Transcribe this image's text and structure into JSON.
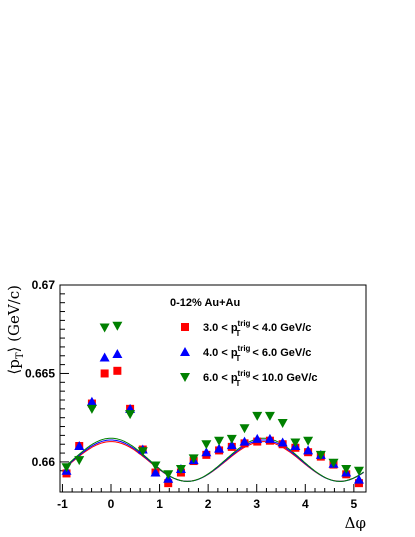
{
  "chart_data": {
    "type": "scatter",
    "title": "0-12% Au+Au",
    "xlabel": "Δφ",
    "ylabel": "⟨p_T⟩ (GeV/c)",
    "xlim": [
      -1.05,
      5.25
    ],
    "ylim": [
      0.6583,
      0.67
    ],
    "x_ticks": [
      -1,
      0,
      1,
      2,
      3,
      4,
      5
    ],
    "y_ticks": [
      0.66,
      0.665,
      0.67
    ],
    "y_tick_labels": [
      "0.66",
      "0.665",
      "0.67"
    ],
    "legend_position": "top-right",
    "series": [
      {
        "name": "3.0 < p_T^trig < 4.0 GeV/c",
        "marker": "square",
        "color": "#ff0000",
        "x": [
          -0.916,
          -0.654,
          -0.393,
          -0.131,
          0.131,
          0.393,
          0.654,
          0.916,
          1.178,
          1.44,
          1.702,
          1.963,
          2.225,
          2.487,
          2.749,
          3.011,
          3.272,
          3.534,
          3.796,
          4.058,
          4.32,
          4.581,
          4.843,
          5.105
        ],
        "y": [
          0.65935,
          0.6609,
          0.6633,
          0.665,
          0.66515,
          0.663,
          0.6607,
          0.6594,
          0.6588,
          0.6594,
          0.66005,
          0.6604,
          0.66065,
          0.66085,
          0.66105,
          0.66115,
          0.6612,
          0.661,
          0.6608,
          0.66055,
          0.6603,
          0.65985,
          0.6593,
          0.6588
        ]
      },
      {
        "name": "4.0 < p_T^trig < 6.0 GeV/c",
        "marker": "triangle-up",
        "color": "#0000ff",
        "x": [
          -0.916,
          -0.654,
          -0.393,
          -0.131,
          0.131,
          0.393,
          0.654,
          0.916,
          1.178,
          1.44,
          1.702,
          1.963,
          2.225,
          2.487,
          2.749,
          3.011,
          3.272,
          3.534,
          3.796,
          4.058,
          4.32,
          4.581,
          4.843,
          5.105
        ],
        "y": [
          0.6595,
          0.6609,
          0.6634,
          0.6659,
          0.6661,
          0.663,
          0.6607,
          0.6594,
          0.65905,
          0.6596,
          0.6601,
          0.66055,
          0.66075,
          0.66095,
          0.66115,
          0.6613,
          0.6613,
          0.6611,
          0.6609,
          0.66065,
          0.6604,
          0.6599,
          0.6594,
          0.659
        ]
      },
      {
        "name": "6.0 < p_T^trig < 10.0 GeV/c",
        "marker": "triangle-down",
        "color": "#008000",
        "x": [
          -0.916,
          -0.654,
          -0.393,
          -0.131,
          0.131,
          0.393,
          0.654,
          0.916,
          1.178,
          1.44,
          1.702,
          1.963,
          2.225,
          2.487,
          2.749,
          3.011,
          3.272,
          3.534,
          3.796,
          4.058,
          4.32,
          4.581,
          4.843,
          5.105
        ],
        "y": [
          0.6597,
          0.6601,
          0.663,
          0.6676,
          0.6677,
          0.6627,
          0.6606,
          0.6598,
          0.6593,
          0.6596,
          0.6602,
          0.661,
          0.6612,
          0.6613,
          0.6619,
          0.6626,
          0.6626,
          0.6622,
          0.6611,
          0.6612,
          0.6604,
          0.65995,
          0.6596,
          0.6595
        ]
      }
    ],
    "fit_curves": [
      {
        "color": "#ff0000",
        "offset": 0.66003,
        "amplitude": 0.00112,
        "x_max": 0.0,
        "x_min_shift": 3.14159
      },
      {
        "color": "#0000ff",
        "offset": 0.66007,
        "amplitude": 0.00117,
        "x_max": 0.0
      },
      {
        "color": "#008000",
        "offset": 0.66012,
        "amplitude": 0.00122,
        "x_max": 0.0
      }
    ]
  }
}
